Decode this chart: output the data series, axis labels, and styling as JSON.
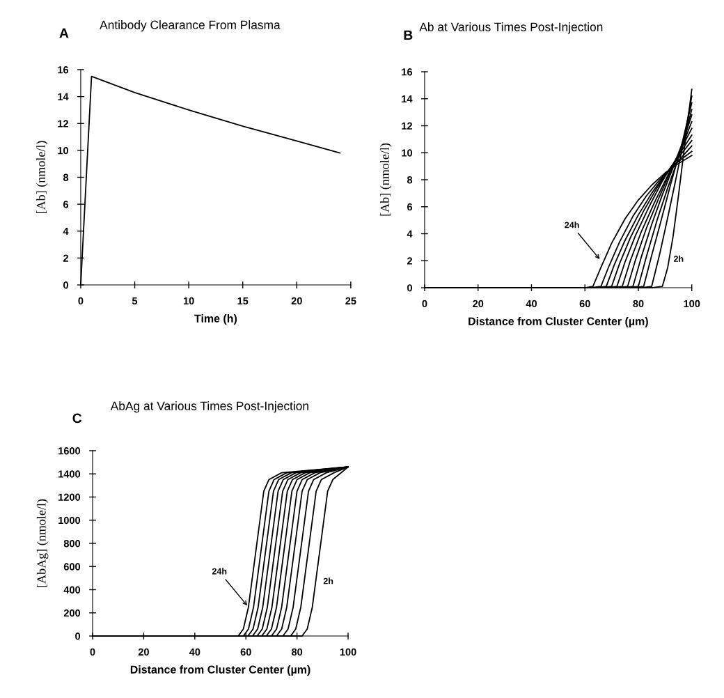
{
  "chart_data": [
    {
      "type": "line",
      "title": "Antibody Clearance From Plasma",
      "xlabel": "Time (h)",
      "ylabel": "[Ab] (nmole/l)",
      "annotations": [
        "A"
      ],
      "xlim": [
        0,
        25
      ],
      "ylim": [
        0,
        16
      ],
      "xticks": [
        0,
        5,
        10,
        15,
        20,
        25
      ],
      "yticks": [
        0,
        2,
        4,
        6,
        8,
        10,
        12,
        14,
        16
      ],
      "grid": false,
      "marker": "none",
      "line_style": "solid",
      "series": [
        {
          "color": "#000000",
          "x": [
            0,
            1,
            5,
            10,
            15,
            20,
            24
          ],
          "values": [
            0,
            15.5,
            14.3,
            13.0,
            11.8,
            10.7,
            9.8
          ]
        }
      ]
    },
    {
      "type": "line",
      "title": "Ab at Various Times Post-Injection",
      "xlabel": "Distance from Cluster Center (µm)",
      "ylabel": "[Ab] (nmole/l)",
      "annotations": [
        "B",
        {
          "text": "24h",
          "x": 66,
          "y": 2
        },
        {
          "text": "2h",
          "x": 91,
          "y": 1.5
        }
      ],
      "xlim": [
        0,
        100
      ],
      "ylim": [
        0,
        16
      ],
      "xticks": [
        0,
        20,
        40,
        60,
        80,
        100
      ],
      "yticks": [
        0,
        2,
        4,
        6,
        8,
        10,
        12,
        14,
        16
      ],
      "grid": false,
      "marker": "none",
      "line_style": "solid",
      "series": [
        {
          "color": "#000000",
          "x": [
            0,
            60,
            63,
            66,
            70,
            75,
            80,
            85,
            90,
            95,
            100
          ],
          "values": [
            0,
            0,
            0.1,
            1.5,
            3.3,
            5.1,
            6.5,
            7.6,
            8.5,
            9.2,
            9.8
          ]
        },
        {
          "color": "#000000",
          "x": [
            0,
            62,
            66,
            69,
            73,
            78,
            83,
            88,
            94,
            100
          ],
          "values": [
            0,
            0,
            0.1,
            1.6,
            3.4,
            5.3,
            6.8,
            8.0,
            9.2,
            10.1
          ]
        },
        {
          "color": "#000000",
          "x": [
            0,
            64,
            68,
            71,
            75,
            80,
            85,
            90,
            95,
            100
          ],
          "values": [
            0,
            0,
            0.1,
            1.7,
            3.5,
            5.4,
            7.0,
            8.4,
            9.4,
            10.5
          ]
        },
        {
          "color": "#000000",
          "x": [
            0,
            66,
            70,
            73,
            77,
            82,
            87,
            92,
            96,
            100
          ],
          "values": [
            0,
            0,
            0.1,
            1.8,
            3.7,
            5.7,
            7.4,
            8.9,
            9.9,
            10.9
          ]
        },
        {
          "color": "#000000",
          "x": [
            0,
            68,
            72,
            75,
            79,
            84,
            89,
            94,
            100
          ],
          "values": [
            0,
            0,
            0.1,
            1.9,
            3.9,
            6.0,
            7.9,
            9.5,
            11.3
          ]
        },
        {
          "color": "#000000",
          "x": [
            0,
            70,
            74,
            77,
            81,
            86,
            91,
            95,
            100
          ],
          "values": [
            0,
            0,
            0.1,
            2.0,
            4.1,
            6.3,
            8.3,
            9.9,
            11.8
          ]
        },
        {
          "color": "#000000",
          "x": [
            0,
            72,
            76,
            79,
            83,
            88,
            92,
            96,
            100
          ],
          "values": [
            0,
            0,
            0.1,
            2.1,
            4.4,
            6.8,
            8.6,
            10.3,
            12.3
          ]
        },
        {
          "color": "#000000",
          "x": [
            0,
            74,
            78,
            81,
            85,
            89,
            93,
            97,
            100
          ],
          "values": [
            0,
            0,
            0.1,
            2.2,
            4.7,
            6.9,
            8.9,
            11.0,
            12.8
          ]
        },
        {
          "color": "#000000",
          "x": [
            0,
            76,
            80,
            83,
            87,
            91,
            95,
            98,
            100
          ],
          "values": [
            0,
            0,
            0.1,
            2.3,
            5.0,
            7.4,
            9.6,
            11.7,
            13.2
          ]
        },
        {
          "color": "#000000",
          "x": [
            0,
            78,
            82,
            85,
            88,
            92,
            96,
            100
          ],
          "values": [
            0,
            0,
            0.1,
            2.4,
            4.6,
            7.6,
            10.4,
            13.7
          ]
        },
        {
          "color": "#000000",
          "x": [
            0,
            81,
            85,
            88,
            91,
            94,
            97,
            100
          ],
          "values": [
            0,
            0,
            0.1,
            2.5,
            5.2,
            8.0,
            10.9,
            14.2
          ]
        },
        {
          "color": "#000000",
          "x": [
            0,
            85,
            89,
            91,
            93,
            95,
            97,
            100
          ],
          "values": [
            0,
            0,
            0.1,
            1.5,
            3.8,
            6.8,
            10.0,
            14.7
          ]
        }
      ]
    },
    {
      "type": "line",
      "title": "AbAg at Various Times Post-Injection",
      "xlabel": "Distance from Cluster Center (µm)",
      "ylabel": "[AbAg] (nmole/l)",
      "annotations": [
        "C",
        {
          "text": "24h",
          "x": 61,
          "y": 250
        },
        {
          "text": "2h",
          "x": 88,
          "y": 400
        }
      ],
      "xlim": [
        0,
        100
      ],
      "ylim": [
        0,
        1600
      ],
      "xticks": [
        0,
        20,
        40,
        60,
        80,
        100
      ],
      "yticks": [
        0,
        200,
        400,
        600,
        800,
        1000,
        1200,
        1400,
        1600
      ],
      "grid": false,
      "marker": "none",
      "line_style": "solid",
      "series": [
        {
          "color": "#000000",
          "x": [
            0,
            57,
            59,
            61,
            62.5,
            64,
            65.5,
            67,
            69,
            74,
            100
          ],
          "values": [
            0,
            0,
            60,
            250,
            500,
            750,
            1000,
            1250,
            1350,
            1410,
            1460
          ]
        },
        {
          "color": "#000000",
          "x": [
            0,
            59,
            61,
            63,
            64.5,
            66,
            67.5,
            69,
            71,
            76,
            100
          ],
          "values": [
            0,
            0,
            60,
            250,
            500,
            750,
            1000,
            1250,
            1350,
            1410,
            1460
          ]
        },
        {
          "color": "#000000",
          "x": [
            0,
            60.8,
            62.8,
            64.8,
            66.3,
            67.8,
            69.3,
            70.8,
            72.8,
            77.8,
            100
          ],
          "values": [
            0,
            0,
            60,
            250,
            500,
            750,
            1000,
            1250,
            1350,
            1410,
            1460
          ]
        },
        {
          "color": "#000000",
          "x": [
            0,
            62.6,
            64.6,
            66.6,
            68.1,
            69.6,
            71.1,
            72.6,
            74.6,
            79.6,
            100
          ],
          "values": [
            0,
            0,
            60,
            250,
            500,
            750,
            1000,
            1250,
            1350,
            1410,
            1460
          ]
        },
        {
          "color": "#000000",
          "x": [
            0,
            64.4,
            66.4,
            68.4,
            69.9,
            71.4,
            72.9,
            74.4,
            76.4,
            81.4,
            100
          ],
          "values": [
            0,
            0,
            60,
            250,
            500,
            750,
            1000,
            1250,
            1350,
            1410,
            1460
          ]
        },
        {
          "color": "#000000",
          "x": [
            0,
            66.2,
            68.2,
            70.2,
            71.7,
            73.2,
            74.7,
            76.2,
            78.2,
            83.2,
            100
          ],
          "values": [
            0,
            0,
            60,
            250,
            500,
            750,
            1000,
            1250,
            1350,
            1410,
            1460
          ]
        },
        {
          "color": "#000000",
          "x": [
            0,
            68,
            70,
            72,
            73.5,
            75,
            76.5,
            78,
            80,
            85,
            100
          ],
          "values": [
            0,
            0,
            60,
            250,
            500,
            750,
            1000,
            1250,
            1350,
            1410,
            1460
          ]
        },
        {
          "color": "#000000",
          "x": [
            0,
            70,
            72,
            74,
            75.5,
            77,
            78.5,
            80,
            82,
            87,
            100
          ],
          "values": [
            0,
            0,
            60,
            250,
            500,
            750,
            1000,
            1250,
            1350,
            1410,
            1460
          ]
        },
        {
          "color": "#000000",
          "x": [
            0,
            72,
            74,
            76,
            77.5,
            79,
            80.5,
            82,
            84,
            89,
            100
          ],
          "values": [
            0,
            0,
            60,
            250,
            500,
            750,
            1000,
            1250,
            1350,
            1410,
            1460
          ]
        },
        {
          "color": "#000000",
          "x": [
            0,
            74.5,
            76.5,
            78.5,
            80,
            81.5,
            83,
            84.5,
            86.5,
            91.5,
            100
          ],
          "values": [
            0,
            0,
            60,
            250,
            500,
            750,
            1000,
            1250,
            1350,
            1410,
            1460
          ]
        },
        {
          "color": "#000000",
          "x": [
            0,
            77.5,
            79.5,
            81.5,
            83,
            84.5,
            86,
            87.5,
            89.5,
            94.5,
            100
          ],
          "values": [
            0,
            0,
            60,
            250,
            500,
            750,
            1000,
            1250,
            1350,
            1410,
            1460
          ]
        },
        {
          "color": "#000000",
          "x": [
            0,
            82,
            84,
            86,
            87.5,
            89,
            90.5,
            92,
            94,
            100
          ],
          "values": [
            0,
            0,
            60,
            250,
            500,
            750,
            1000,
            1250,
            1350,
            1460
          ]
        }
      ]
    }
  ]
}
